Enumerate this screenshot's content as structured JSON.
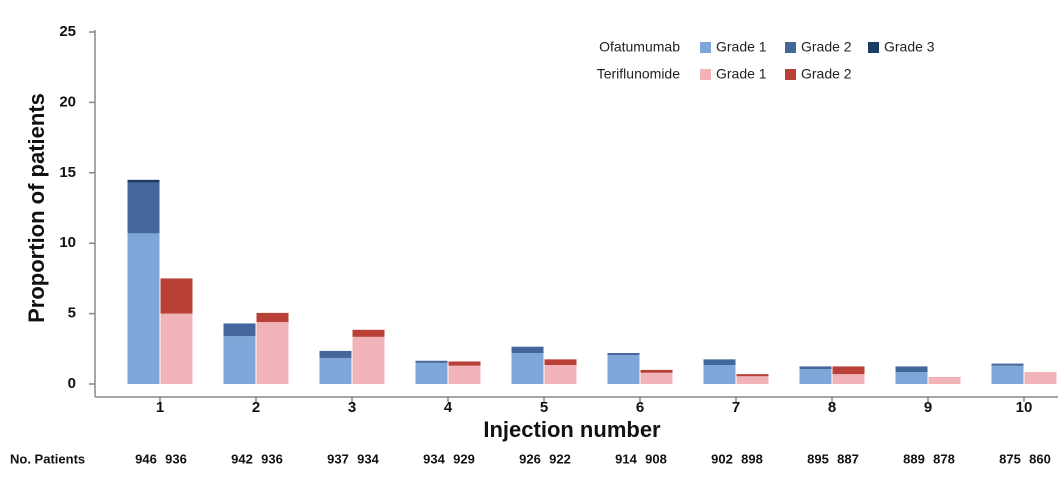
{
  "chart_data": {
    "type": "grouped-stacked-bar",
    "y_label": "Proportion of patients",
    "x_label": "Injection number",
    "categories": [
      "1",
      "2",
      "3",
      "4",
      "5",
      "6",
      "7",
      "8",
      "9",
      "10"
    ],
    "ylim": [
      0,
      25
    ],
    "yticks": [
      0,
      5,
      10,
      15,
      20,
      25
    ],
    "groups": [
      {
        "name": "Ofatumumab",
        "series": [
          {
            "name": "Grade 1",
            "color": "#7ea6d8",
            "values": [
              10.7,
              3.4,
              1.85,
              1.5,
              2.2,
              2.05,
              1.35,
              1.05,
              0.85,
              1.3
            ]
          },
          {
            "name": "Grade 2",
            "color": "#44679b",
            "values": [
              3.6,
              0.9,
              0.5,
              0.15,
              0.45,
              0.15,
              0.4,
              0.2,
              0.4,
              0.15
            ]
          },
          {
            "name": "Grade 3",
            "color": "#1c3c64",
            "values": [
              0.2,
              0,
              0,
              0,
              0,
              0,
              0,
              0,
              0,
              0
            ]
          }
        ]
      },
      {
        "name": "Teriflunomide",
        "series": [
          {
            "name": "Grade 1",
            "color": "#f2b3b8",
            "values": [
              5.0,
              4.4,
              3.35,
              1.3,
              1.35,
              0.8,
              0.55,
              0.7,
              0.5,
              0.85
            ]
          },
          {
            "name": "Grade 2",
            "color": "#b84037",
            "values": [
              2.5,
              0.65,
              0.5,
              0.3,
              0.4,
              0.2,
              0.15,
              0.55,
              0,
              0
            ]
          }
        ]
      }
    ],
    "patients": {
      "label": "No. Patients",
      "values": [
        [
          946,
          936
        ],
        [
          942,
          936
        ],
        [
          937,
          934
        ],
        [
          934,
          929
        ],
        [
          926,
          922
        ],
        [
          914,
          908
        ],
        [
          902,
          898
        ],
        [
          895,
          887
        ],
        [
          889,
          878
        ],
        [
          875,
          860
        ]
      ]
    }
  }
}
